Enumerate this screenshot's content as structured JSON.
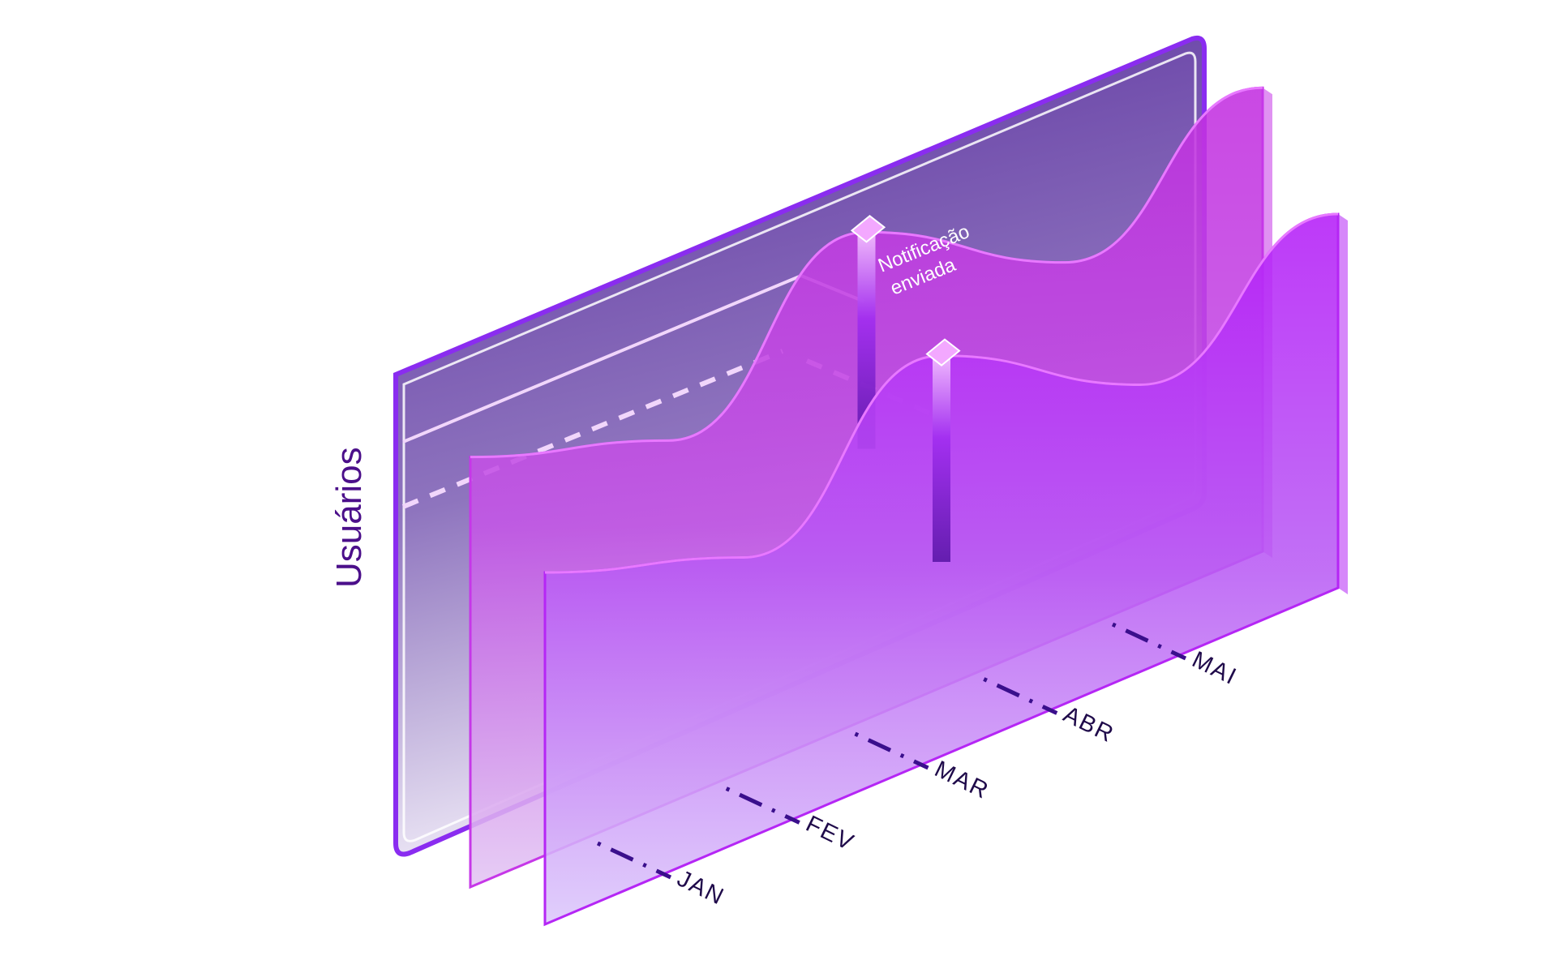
{
  "chart_data": {
    "type": "area",
    "ylabel": "Usuários",
    "categories": [
      "JAN",
      "FEV",
      "MAR",
      "ABR",
      "MAI"
    ],
    "series": [
      {
        "values": [
          0.62,
          0.42,
          0.96,
          0.58,
          0.99
        ],
        "color": "#c637e8"
      },
      {
        "values": [
          0.6,
          0.4,
          0.92,
          0.55,
          0.95
        ],
        "color": "#b526f5"
      }
    ],
    "annotation": {
      "text_line1": "Notificação",
      "text_line2": "enviada",
      "category": "MAR"
    },
    "colors": {
      "panel_top": "#6d4aa6",
      "panel_bottom": "#efe9f6",
      "axis_text": "#4b0f8a",
      "month_text": "#1f0a4a"
    }
  }
}
